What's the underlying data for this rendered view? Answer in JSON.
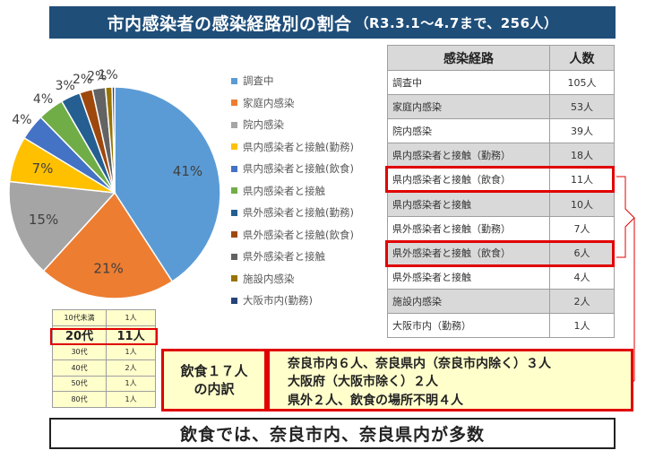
{
  "title": {
    "main": "市内感染者の感染経路別の割合",
    "sub": "（R3.3.1～4.7まで、256人）"
  },
  "chart_data": {
    "type": "pie",
    "title": "市内感染者の感染経路別の割合（R3.3.1～4.7まで、256人）",
    "legend_position": "right",
    "slices": [
      {
        "name": "調査中",
        "value": 41,
        "label": "41%",
        "color": "#5b9bd5"
      },
      {
        "name": "家庭内感染",
        "value": 21,
        "label": "21%",
        "color": "#ed7d31"
      },
      {
        "name": "院内感染",
        "value": 15,
        "label": "15%",
        "color": "#a5a5a5"
      },
      {
        "name": "県内感染者と接触(勤務)",
        "value": 7,
        "label": "7%",
        "color": "#ffc000"
      },
      {
        "name": "県内感染者と接触(飲食)",
        "value": 4,
        "label": "4%",
        "color": "#4472c4"
      },
      {
        "name": "県内感染者と接触",
        "value": 4,
        "label": "4%",
        "color": "#70ad47"
      },
      {
        "name": "県外感染者と接触(勤務)",
        "value": 3,
        "label": "3%",
        "color": "#255e91"
      },
      {
        "name": "県外感染者と接触(飲食)",
        "value": 2,
        "label": "2%",
        "color": "#9e480e"
      },
      {
        "name": "県外感染者と接触",
        "value": 2,
        "label": "2%",
        "color": "#636363"
      },
      {
        "name": "施設内感染",
        "value": 1,
        "label": "1%",
        "color": "#997300"
      },
      {
        "name": "大阪市内(勤務)",
        "value": 0.4,
        "label": "",
        "color": "#264478"
      }
    ]
  },
  "route_table": {
    "headers": [
      "感染経路",
      "人数"
    ],
    "rows": [
      {
        "route": "調査中",
        "count": "105人"
      },
      {
        "route": "家庭内感染",
        "count": "53人"
      },
      {
        "route": "院内感染",
        "count": "39人"
      },
      {
        "route": "県内感染者と接触（勤務）",
        "count": "18人"
      },
      {
        "route": "県内感染者と接触（飲食）",
        "count": "11人"
      },
      {
        "route": "県内感染者と接触",
        "count": "10人"
      },
      {
        "route": "県外感染者と接触（勤務）",
        "count": "7人"
      },
      {
        "route": "県外感染者と接触（飲食）",
        "count": "6人"
      },
      {
        "route": "県外感染者と接触",
        "count": "4人"
      },
      {
        "route": "施設内感染",
        "count": "2人"
      },
      {
        "route": "大阪市内（勤務）",
        "count": "1人"
      }
    ]
  },
  "age_table": {
    "rows": [
      {
        "age": "10代未満",
        "count": "1人"
      },
      {
        "age": "20代",
        "count": "11人"
      },
      {
        "age": "30代",
        "count": "1人"
      },
      {
        "age": "40代",
        "count": "2人"
      },
      {
        "age": "50代",
        "count": "1人"
      },
      {
        "age": "80代",
        "count": "1人"
      }
    ]
  },
  "breakdown": {
    "label_line1": "飲食１７人",
    "label_line2": "の内訳",
    "lines": [
      "奈良市内６人、奈良県内（奈良市内除く）３人",
      "大阪府（大阪市除く）２人",
      "県外２人、飲食の場所不明４人"
    ]
  },
  "conclusion": "飲食では、奈良市内、奈良県内が多数"
}
